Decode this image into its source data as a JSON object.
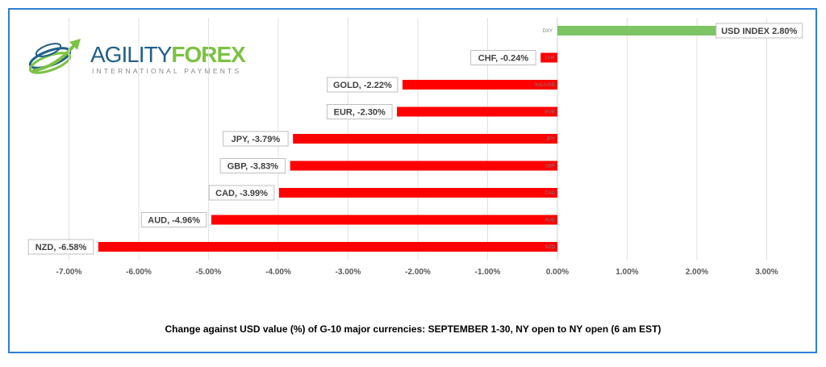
{
  "logo": {
    "brand_a": "AGILITY",
    "brand_b": "FOREX",
    "tagline": "INTERNATIONAL PAYMENTS"
  },
  "colors": {
    "positive": "#7dc464",
    "negative": "#ff0000",
    "frame": "#2f7fd6"
  },
  "chart_data": {
    "type": "bar",
    "orientation": "horizontal",
    "categories": [
      "DXY",
      "CHF",
      "XAUUSD",
      "EUR",
      "JPY",
      "GBP",
      "CAD",
      "AUD",
      "NZD"
    ],
    "labels": [
      "USD INDEX 2.80%",
      "CHF, -0.24%",
      "GOLD, -2.22%",
      "EUR, -2.30%",
      "JPY, -3.79%",
      "GBP, -3.83%",
      "CAD, -3.99%",
      "AUD, -4.96%",
      "NZD, -6.58%"
    ],
    "values": [
      2.8,
      -0.24,
      -2.22,
      -2.3,
      -3.79,
      -3.83,
      -3.99,
      -4.96,
      -6.58
    ],
    "xlim": [
      -7,
      3.4
    ],
    "xticks": [
      "-7.00%",
      "-6.00%",
      "-5.00%",
      "-4.00%",
      "-3.00%",
      "-2.00%",
      "-1.00%",
      "0.00%",
      "1.00%",
      "2.00%",
      "3.00%"
    ],
    "grid": true,
    "title": "Change against  USD value (%)  of  G-10 major currencies: SEPTEMBER 1-30, NY open to NY open  (6 am EST)"
  }
}
